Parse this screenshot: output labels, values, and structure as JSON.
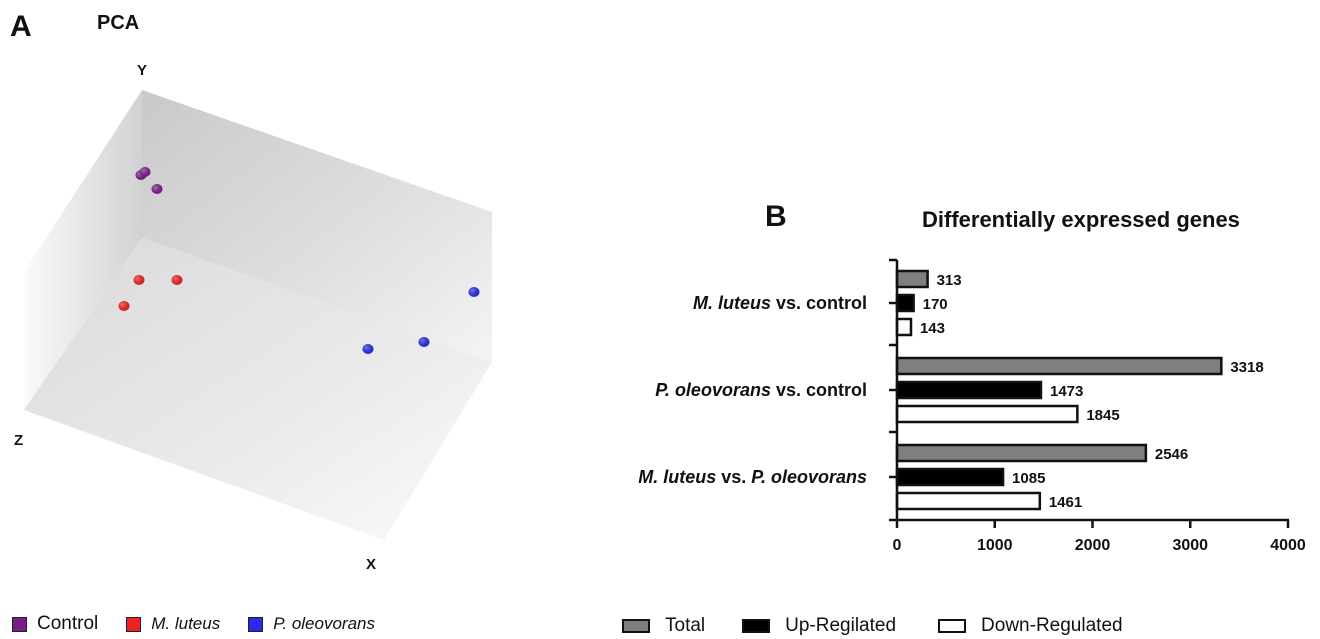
{
  "panel_a": {
    "label": "A",
    "title": "PCA",
    "axis_labels": {
      "y": "Y",
      "z": "Z",
      "x": "X"
    },
    "legend": [
      {
        "name": "Control",
        "italic": false,
        "color": "#7b1c8a"
      },
      {
        "name": "M. luteus",
        "italic": true,
        "color": "#ee2222"
      },
      {
        "name": "P. oleovorans",
        "italic": true,
        "color": "#2a2ae8"
      }
    ]
  },
  "panel_b": {
    "label": "B",
    "title": "Differentially expressed genes",
    "legend": [
      {
        "name": "Total",
        "color": "#7f7f7f"
      },
      {
        "name": "Up-Regilated",
        "color": "#000000"
      },
      {
        "name": "Down-Regulated",
        "color": "#ffffff"
      }
    ]
  },
  "chart_data": [
    {
      "type": "scatter",
      "title": "PCA",
      "xlabel": "X",
      "ylabel": "Y",
      "zlabel": "Z",
      "series": [
        {
          "name": "Control",
          "color": "#7b1c8a"
        },
        {
          "name": "M. luteus",
          "color": "#ee2222"
        },
        {
          "name": "P. oleovorans",
          "color": "#2a2ae8"
        }
      ]
    },
    {
      "type": "bar",
      "orientation": "horizontal",
      "title": "Differentially expressed genes",
      "categories": [
        "M. luteus vs. control",
        "P. oleovorans vs. control",
        "M. luteus vs. P. oleovorans"
      ],
      "category_parts": [
        [
          {
            "t": "M. luteus",
            "i": true
          },
          {
            "t": " vs. control",
            "i": false
          }
        ],
        [
          {
            "t": "P. oleovorans",
            "i": true
          },
          {
            "t": " vs. control",
            "i": false
          }
        ],
        [
          {
            "t": "M. luteus",
            "i": true
          },
          {
            "t": " vs. ",
            "i": false
          },
          {
            "t": "P. oleovorans",
            "i": true
          }
        ]
      ],
      "series": [
        {
          "name": "Total",
          "color": "#7f7f7f",
          "values": [
            313,
            3318,
            2546
          ]
        },
        {
          "name": "Up-Regilated",
          "color": "#000000",
          "values": [
            170,
            1473,
            1085
          ]
        },
        {
          "name": "Down-Regulated",
          "color": "#ffffff",
          "values": [
            143,
            1845,
            1461
          ]
        }
      ],
      "xlim": [
        0,
        4000
      ],
      "xticks": [
        0,
        1000,
        2000,
        3000,
        4000
      ],
      "grid": false,
      "legend_position": "bottom"
    }
  ]
}
